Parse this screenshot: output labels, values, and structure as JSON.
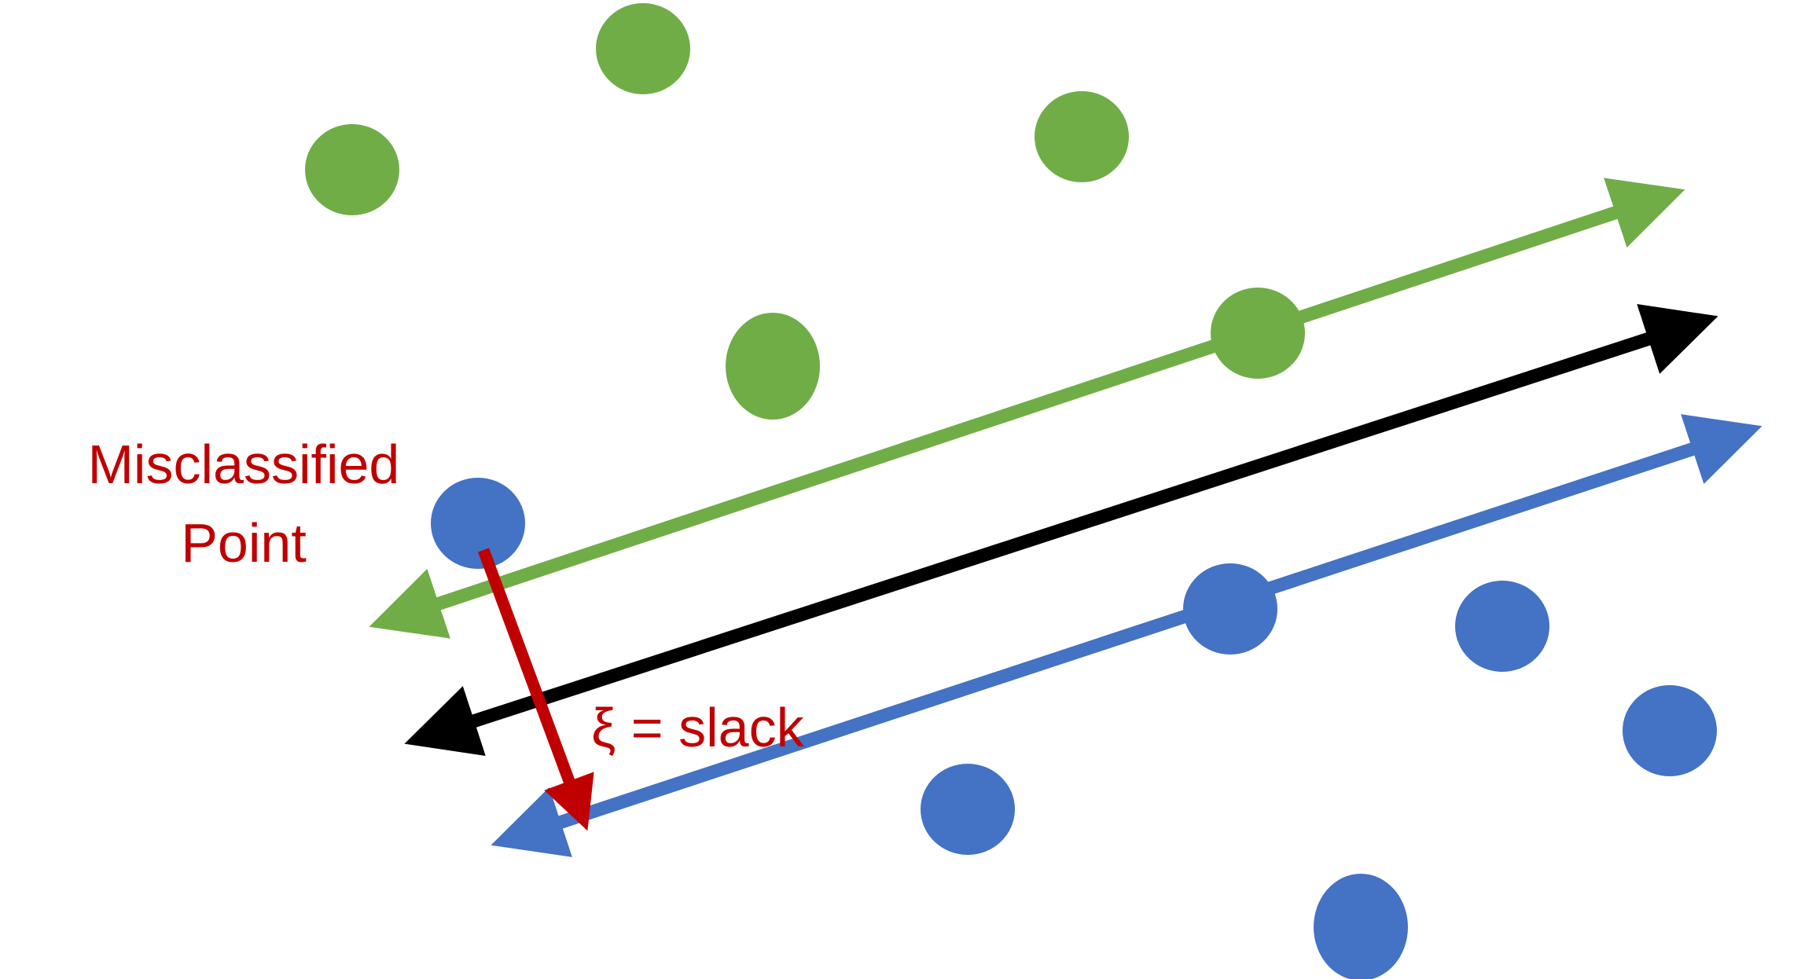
{
  "colors": {
    "background": "#ffffff",
    "green": "#70ad47",
    "blue": "#4472c4",
    "black": "#000000",
    "red": "#c00000"
  },
  "labels": {
    "misclassified_line1": "Misclassified",
    "misclassified_line2": "Point",
    "slack": "ξ = slack"
  },
  "points": {
    "green": [
      "green-point",
      "green-point",
      "green-point",
      "green-point",
      "green-point-on-margin"
    ],
    "blue": [
      "blue-point-misclassified",
      "blue-point-on-margin",
      "blue-point",
      "blue-point",
      "blue-point",
      "blue-point"
    ]
  },
  "lines": [
    "positive-margin",
    "decision-boundary",
    "negative-margin",
    "slack-distance"
  ]
}
